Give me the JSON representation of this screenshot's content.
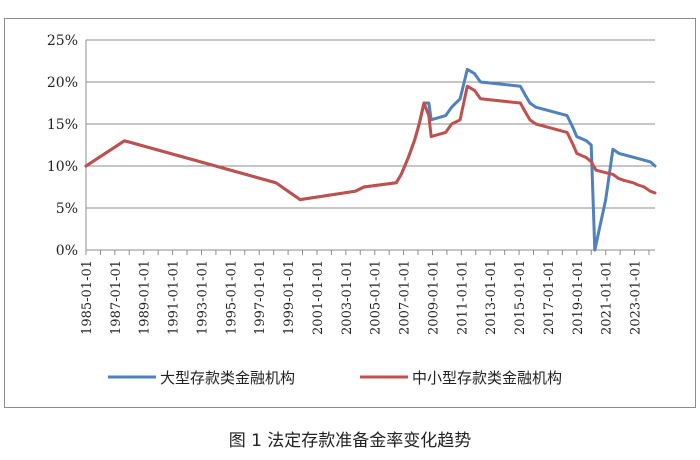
{
  "caption": "图 1 法定存款准备金率变化趋势",
  "chart_data": {
    "type": "line",
    "title": "",
    "xlabel": "",
    "ylabel": "",
    "x_range": [
      "1985-01-01",
      "2024-06-01"
    ],
    "ylim": [
      0,
      25
    ],
    "y_ticks": [
      "0%",
      "5%",
      "10%",
      "15%",
      "20%",
      "25%"
    ],
    "x_ticks": [
      "1985-01-01",
      "1987-01-01",
      "1989-01-01",
      "1991-01-01",
      "1993-01-01",
      "1995-01-01",
      "1997-01-01",
      "1999-01-01",
      "2001-01-01",
      "2003-01-01",
      "2005-01-01",
      "2007-01-01",
      "2009-01-01",
      "2011-01-01",
      "2013-01-01",
      "2015-01-01",
      "2017-01-01",
      "2019-01-01",
      "2021-01-01",
      "2023-01-01"
    ],
    "grid": "horizontal",
    "legend_position": "bottom",
    "series": [
      {
        "name": "大型存款类金融机构",
        "color": "#4f81bd",
        "points": [
          [
            "1985-01-01",
            10
          ],
          [
            "1987-09-01",
            13
          ],
          [
            "1998-03-01",
            8
          ],
          [
            "1999-11-01",
            6
          ],
          [
            "2003-09-01",
            7
          ],
          [
            "2004-04-01",
            7.5
          ],
          [
            "2006-07-01",
            8
          ],
          [
            "2006-11-01",
            9
          ],
          [
            "2007-05-01",
            11
          ],
          [
            "2007-10-01",
            13
          ],
          [
            "2008-02-01",
            15
          ],
          [
            "2008-06-01",
            17.5
          ],
          [
            "2008-10-01",
            17.5
          ],
          [
            "2008-12-01",
            15.5
          ],
          [
            "2009-12-01",
            16
          ],
          [
            "2010-05-01",
            17
          ],
          [
            "2010-12-01",
            18
          ],
          [
            "2011-06-01",
            21.5
          ],
          [
            "2011-12-01",
            21
          ],
          [
            "2012-05-01",
            20
          ],
          [
            "2015-02-01",
            19.5
          ],
          [
            "2015-06-01",
            18.5
          ],
          [
            "2015-10-01",
            17.5
          ],
          [
            "2016-03-01",
            17
          ],
          [
            "2018-05-01",
            16
          ],
          [
            "2018-10-01",
            14.5
          ],
          [
            "2019-01-01",
            13.5
          ],
          [
            "2019-09-01",
            13
          ],
          [
            "2020-01-01",
            12.5
          ],
          [
            "2020-04-01",
            0
          ],
          [
            "2021-01-01",
            6
          ],
          [
            "2021-07-01",
            12
          ],
          [
            "2021-12-01",
            11.5
          ],
          [
            "2024-02-01",
            10.5
          ],
          [
            "2024-06-01",
            10
          ]
        ]
      },
      {
        "name": "中小型存款类金融机构",
        "color": "#c0504d",
        "points": [
          [
            "1985-01-01",
            10
          ],
          [
            "1987-09-01",
            13
          ],
          [
            "1998-03-01",
            8
          ],
          [
            "1999-11-01",
            6
          ],
          [
            "2003-09-01",
            7
          ],
          [
            "2004-04-01",
            7.5
          ],
          [
            "2006-07-01",
            8
          ],
          [
            "2006-11-01",
            9
          ],
          [
            "2007-05-01",
            11
          ],
          [
            "2007-10-01",
            13
          ],
          [
            "2008-02-01",
            15
          ],
          [
            "2008-06-01",
            17.5
          ],
          [
            "2008-10-01",
            16
          ],
          [
            "2008-12-01",
            13.5
          ],
          [
            "2009-12-01",
            14
          ],
          [
            "2010-05-01",
            15
          ],
          [
            "2010-12-01",
            15.5
          ],
          [
            "2011-06-01",
            19.5
          ],
          [
            "2011-12-01",
            19
          ],
          [
            "2012-05-01",
            18
          ],
          [
            "2015-02-01",
            17.5
          ],
          [
            "2015-06-01",
            16.5
          ],
          [
            "2015-10-01",
            15.5
          ],
          [
            "2016-03-01",
            15
          ],
          [
            "2018-05-01",
            14
          ],
          [
            "2018-10-01",
            12.5
          ],
          [
            "2019-01-01",
            11.5
          ],
          [
            "2019-09-01",
            11
          ],
          [
            "2020-01-01",
            10.5
          ],
          [
            "2020-05-01",
            9.5
          ],
          [
            "2021-07-01",
            9
          ],
          [
            "2021-12-01",
            8.5
          ],
          [
            "2022-04-01",
            8.3
          ],
          [
            "2022-12-01",
            8
          ],
          [
            "2023-03-01",
            7.8
          ],
          [
            "2023-09-01",
            7.5
          ],
          [
            "2024-02-01",
            7
          ],
          [
            "2024-06-01",
            6.8
          ]
        ]
      }
    ]
  }
}
